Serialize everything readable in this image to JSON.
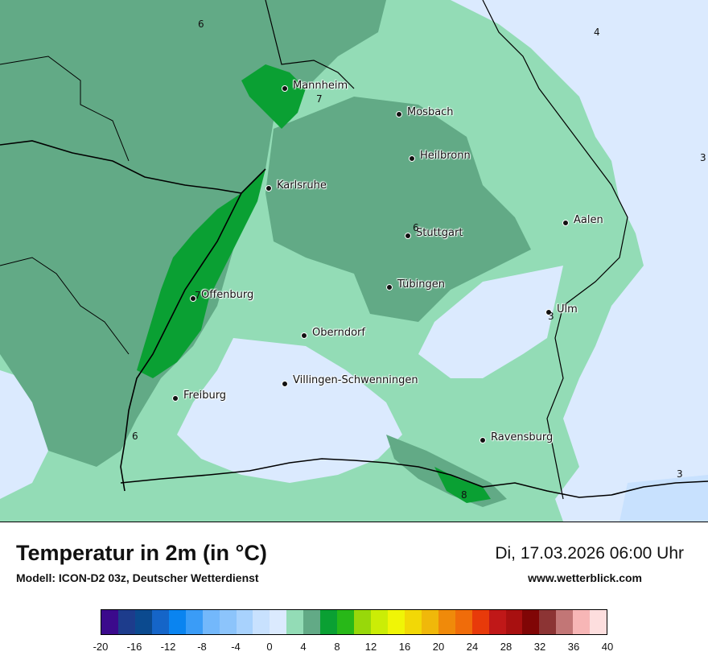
{
  "title": "Temperatur in 2m (in °C)",
  "subtitle": "Modell: ICON-D2 03z, Deutscher Wetterdienst",
  "datetime": "Di, 17.03.2026 06:00 Uhr",
  "website": "www.wetterblick.com",
  "cities": [
    {
      "name": "Mannheim"
    },
    {
      "name": "Mosbach"
    },
    {
      "name": "Heilbronn"
    },
    {
      "name": "Karlsruhe"
    },
    {
      "name": "Stuttgart"
    },
    {
      "name": "Aalen"
    },
    {
      "name": "Tübingen"
    },
    {
      "name": "Offenburg"
    },
    {
      "name": "Ulm"
    },
    {
      "name": "Oberndorf"
    },
    {
      "name": "Villingen-Schwenningen"
    },
    {
      "name": "Freiburg"
    },
    {
      "name": "Ravensburg"
    }
  ],
  "isotherm_labels": [
    "6",
    "4",
    "7",
    "3",
    "6",
    "7",
    "3",
    "6",
    "3",
    "8"
  ],
  "legend": {
    "colors": [
      "#3b0a8c",
      "#1d3c8c",
      "#0b4a8f",
      "#1565c8",
      "#0a84f0",
      "#3a9cf7",
      "#73b8fb",
      "#8cc4fb",
      "#a8d2fd",
      "#c8e1fe",
      "#dbeafe",
      "#93dcb6",
      "#62aa86",
      "#0aa033",
      "#28b818",
      "#98d80a",
      "#cbed06",
      "#f0f506",
      "#f2d806",
      "#f0b80a",
      "#f08a0a",
      "#f06c0a",
      "#e83a0a",
      "#c01818",
      "#a81010",
      "#800606",
      "#8c3434",
      "#c27676",
      "#f7b6b6",
      "#fddede"
    ],
    "ticks": [
      "-20",
      "-16",
      "-12",
      "-8",
      "-4",
      "0",
      "4",
      "8",
      "12",
      "16",
      "20",
      "24",
      "28",
      "32",
      "36",
      "40"
    ]
  }
}
